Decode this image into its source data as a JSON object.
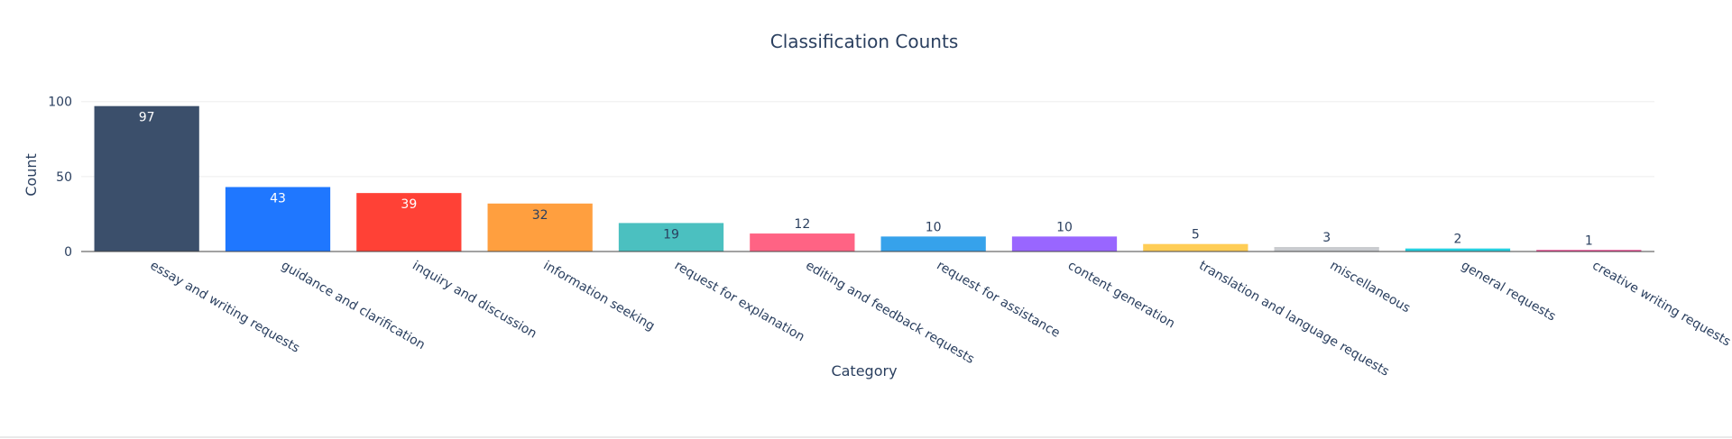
{
  "chart_data": {
    "type": "bar",
    "title": "Classification Counts",
    "xlabel": "Category",
    "ylabel": "Count",
    "ylim": [
      0,
      100
    ],
    "yticks": [
      0,
      50,
      100
    ],
    "grid": true,
    "categories": [
      "essay and writing requests",
      "guidance and clarification",
      "inquiry and discussion",
      "information seeking",
      "request for explanation",
      "editing and feedback requests",
      "request for assistance",
      "content generation",
      "translation and language requests",
      "miscellaneous",
      "general requests",
      "creative writing requests"
    ],
    "values": [
      97,
      43,
      39,
      32,
      19,
      12,
      10,
      10,
      5,
      3,
      2,
      1
    ],
    "colors": [
      "#3b4f6b",
      "#1f77ff",
      "#ff4136",
      "#ff9f3f",
      "#4bc0c0",
      "#ff6384",
      "#36a2eb",
      "#9966ff",
      "#ffcd56",
      "#c9cbcf",
      "#26d0e0",
      "#e83e8c"
    ]
  }
}
